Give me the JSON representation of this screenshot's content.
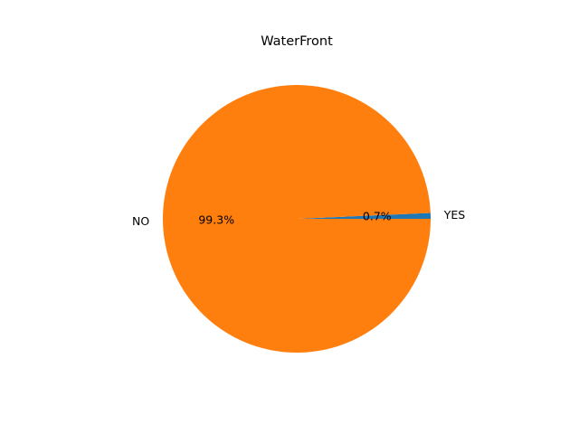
{
  "chart_data": {
    "type": "pie",
    "title": "WaterFront",
    "slices": [
      {
        "label": "YES",
        "value": 0.7,
        "pct_label": "0.7%",
        "color": "#1f77b4"
      },
      {
        "label": "NO",
        "value": 99.3,
        "pct_label": "99.3%",
        "color": "#ff7f0e"
      }
    ],
    "start_angle_deg": 0,
    "direction": "counterclockwise",
    "legend": "none"
  }
}
